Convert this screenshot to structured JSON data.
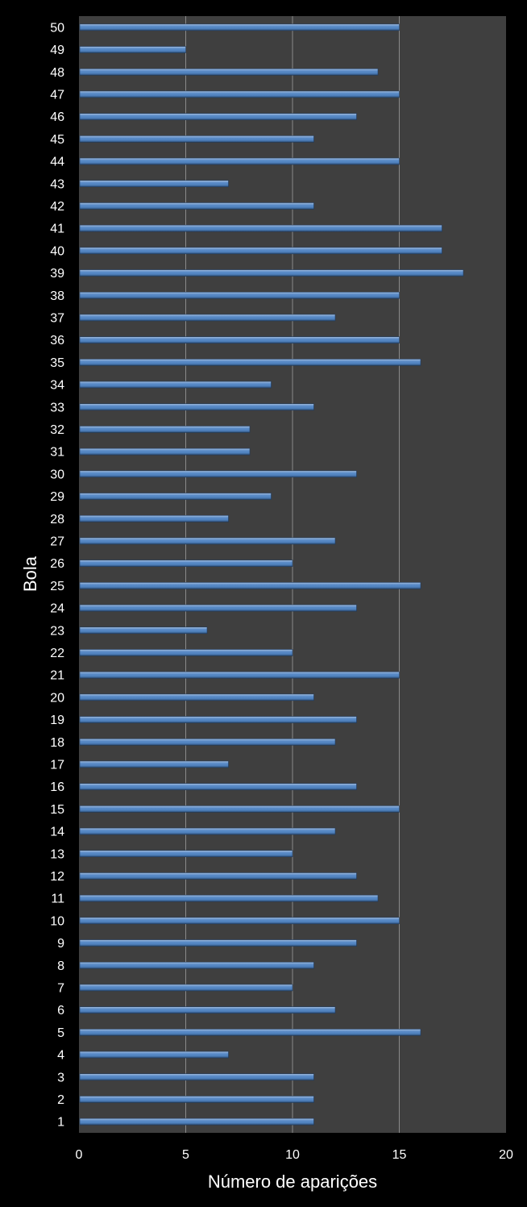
{
  "chart_data": {
    "type": "bar",
    "orientation": "horizontal",
    "xlabel": "Número de aparições",
    "ylabel": "Bola",
    "xlim": [
      0,
      20
    ],
    "xticks": [
      "0",
      "5",
      "10",
      "15",
      "20"
    ],
    "grid": "vertical",
    "legend": "none",
    "categories": [
      "1",
      "2",
      "3",
      "4",
      "5",
      "6",
      "7",
      "8",
      "9",
      "10",
      "11",
      "12",
      "13",
      "14",
      "15",
      "16",
      "17",
      "18",
      "19",
      "20",
      "21",
      "22",
      "23",
      "24",
      "25",
      "26",
      "27",
      "28",
      "29",
      "30",
      "31",
      "32",
      "33",
      "34",
      "35",
      "36",
      "37",
      "38",
      "39",
      "40",
      "41",
      "42",
      "43",
      "44",
      "45",
      "46",
      "47",
      "48",
      "49",
      "50"
    ],
    "values": [
      11,
      11,
      11,
      7,
      16,
      12,
      10,
      11,
      13,
      15,
      14,
      13,
      10,
      12,
      15,
      13,
      7,
      12,
      13,
      11,
      15,
      10,
      6,
      13,
      16,
      10,
      12,
      7,
      9,
      13,
      8,
      8,
      11,
      9,
      16,
      15,
      12,
      15,
      18,
      17,
      17,
      11,
      7,
      15,
      11,
      13,
      15,
      14,
      5,
      15
    ],
    "colors": {
      "background": "#000000",
      "plot_area": "#3f3f3f",
      "bar_fill": "#4f81bd",
      "bar_light": "#a7c0e0",
      "bar_dark": "#2c4d75",
      "gridline": "#8a8a8a",
      "text": "#ffffff"
    }
  }
}
